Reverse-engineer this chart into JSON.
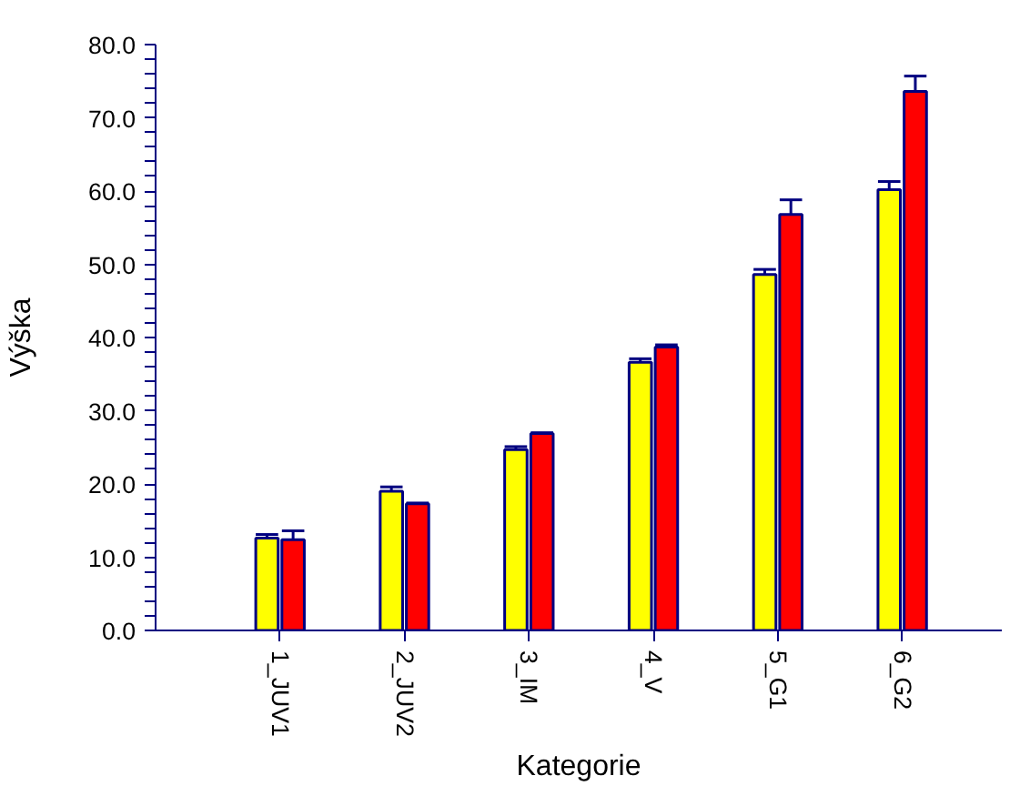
{
  "chart_data": {
    "type": "bar",
    "xlabel": "Kategorie",
    "ylabel": "Výška",
    "categories": [
      "1_JUV1",
      "2_JUV2",
      "3_IM",
      "4_V",
      "5_G1",
      "6_G2"
    ],
    "series": [
      {
        "color": "#ffff00",
        "values": [
          12.6,
          19.0,
          24.7,
          36.6,
          48.6,
          60.2
        ],
        "errors": [
          [
            12.6,
            13.1
          ],
          [
            19.0,
            19.6
          ],
          [
            24.7,
            25.1
          ],
          [
            36.6,
            37.1
          ],
          [
            48.6,
            49.3
          ],
          [
            60.2,
            61.3
          ]
        ]
      },
      {
        "color": "#ff0000",
        "values": [
          12.4,
          17.3,
          26.9,
          38.7,
          56.8,
          73.6
        ],
        "errors": [
          [
            12.4,
            13.6
          ],
          [
            17.3,
            17.4
          ],
          [
            26.9,
            27.0
          ],
          [
            38.7,
            39.0
          ],
          [
            56.8,
            58.8
          ],
          [
            73.6,
            75.7
          ]
        ]
      }
    ],
    "ylim": [
      0,
      80
    ],
    "yticks": [
      {
        "value": 0,
        "label": "0.0"
      },
      {
        "value": 10,
        "label": "10.0"
      },
      {
        "value": 20,
        "label": "20.0"
      },
      {
        "value": 30,
        "label": "30.0"
      },
      {
        "value": 40,
        "label": "40.0"
      },
      {
        "value": 50,
        "label": "50.0"
      },
      {
        "value": 60,
        "label": "60.0"
      },
      {
        "value": 70,
        "label": "70.0"
      },
      {
        "value": 80,
        "label": "80.0"
      },
      {
        "value": 2,
        "label": null
      },
      {
        "value": 4,
        "label": null
      },
      {
        "value": 6,
        "label": null
      },
      {
        "value": 8,
        "label": null
      },
      {
        "value": 12,
        "label": null
      },
      {
        "value": 14,
        "label": null
      },
      {
        "value": 16,
        "label": null
      },
      {
        "value": 18,
        "label": null
      },
      {
        "value": 22,
        "label": null
      },
      {
        "value": 24,
        "label": null
      },
      {
        "value": 26,
        "label": null
      },
      {
        "value": 28,
        "label": null
      },
      {
        "value": 32,
        "label": null
      },
      {
        "value": 34,
        "label": null
      },
      {
        "value": 36,
        "label": null
      },
      {
        "value": 38,
        "label": null
      },
      {
        "value": 42,
        "label": null
      },
      {
        "value": 44,
        "label": null
      },
      {
        "value": 46,
        "label": null
      },
      {
        "value": 48,
        "label": null
      },
      {
        "value": 52,
        "label": null
      },
      {
        "value": 54,
        "label": null
      },
      {
        "value": 56,
        "label": null
      },
      {
        "value": 58,
        "label": null
      },
      {
        "value": 62,
        "label": null
      },
      {
        "value": 64,
        "label": null
      },
      {
        "value": 66,
        "label": null
      },
      {
        "value": 68,
        "label": null
      },
      {
        "value": 72,
        "label": null
      },
      {
        "value": 74,
        "label": null
      },
      {
        "value": 76,
        "label": null
      },
      {
        "value": 78,
        "label": null
      }
    ]
  }
}
